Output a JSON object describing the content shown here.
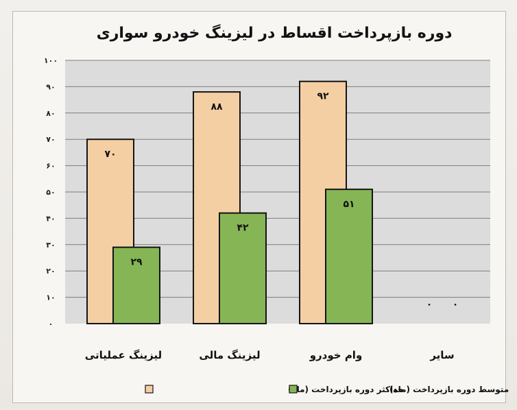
{
  "chart_data": {
    "type": "bar",
    "title": "دوره بازپرداخت اقساط در لیزینگ خودرو سواری",
    "xlabel": "",
    "ylabel": "",
    "ylim": [
      0,
      100
    ],
    "yticks": [
      0,
      10,
      20,
      30,
      40,
      50,
      60,
      70,
      80,
      90,
      100
    ],
    "ytick_labels": [
      "۰",
      "۱۰",
      "۲۰",
      "۳۰",
      "۴۰",
      "۵۰",
      "۶۰",
      "۷۰",
      "۸۰",
      "۹۰",
      "۱۰۰"
    ],
    "categories": [
      "لیزینگ عملیاتی",
      "لیزینگ مالی",
      "وام خودرو",
      "سایر"
    ],
    "grid": true,
    "legend_position": "bottom",
    "series": [
      {
        "name": "حداکثر دوره بازپرداخت (ماه)",
        "color": "#f4cfa3",
        "values": [
          70,
          88,
          92,
          0
        ],
        "value_labels": [
          "۷۰",
          "۸۸",
          "۹۲",
          "۰"
        ]
      },
      {
        "name": "متوسط دوره بازپرداخت (ماه)",
        "color": "#86b556",
        "values": [
          29,
          42,
          51,
          0
        ],
        "value_labels": [
          "۲۹",
          "۴۲",
          "۵۱",
          "۰"
        ]
      }
    ]
  },
  "colors": {
    "plot_background": "#dcdcdc",
    "gridline": "#7d7d7d",
    "bar_outline": "#141414"
  }
}
